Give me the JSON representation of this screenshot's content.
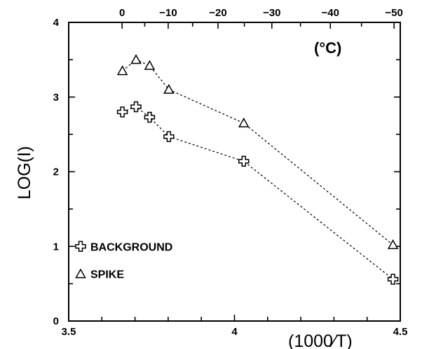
{
  "chart_data": {
    "type": "scatter",
    "title": "",
    "xlabel": "(1000∕T)",
    "ylabel": "LOG(I)",
    "top_axis_label": "(°C)",
    "xlim": [
      3.5,
      4.5
    ],
    "ylim": [
      0,
      4
    ],
    "x_ticks": [
      3.5,
      4,
      4.5
    ],
    "x_tick_labels": [
      "3.5",
      "4",
      "4.5"
    ],
    "y_ticks": [
      0,
      1,
      2,
      3,
      4
    ],
    "y_tick_labels": [
      "0",
      "1",
      "2",
      "3",
      "4"
    ],
    "top_ticks_celsius": [
      0,
      -10,
      -20,
      -30,
      -40,
      -50
    ],
    "top_tick_labels": [
      "0",
      "−10",
      "−20",
      "−30",
      "−40",
      "−50"
    ],
    "grid": false,
    "legend_position": "bottom-left",
    "series": [
      {
        "name": "BACKGROUND",
        "marker": "cross",
        "x": [
          3.662,
          3.703,
          3.744,
          3.802,
          4.028,
          4.478
        ],
        "y": [
          2.8,
          2.87,
          2.73,
          2.47,
          2.14,
          0.56
        ]
      },
      {
        "name": "SPIKE",
        "marker": "triangle",
        "x": [
          3.662,
          3.703,
          3.744,
          3.802,
          4.028,
          4.478
        ],
        "y": [
          3.35,
          3.5,
          3.42,
          3.1,
          2.65,
          1.02
        ]
      }
    ]
  }
}
